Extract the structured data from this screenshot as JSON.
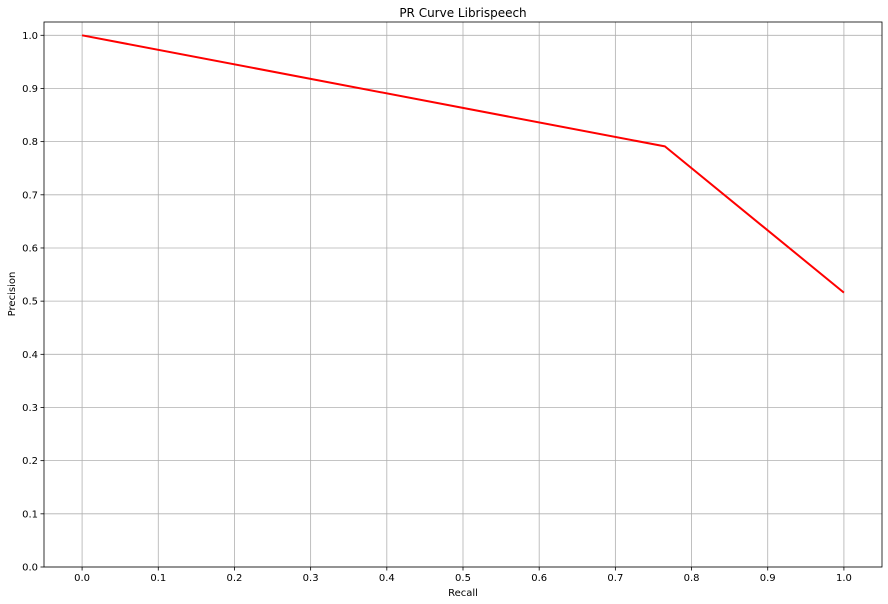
{
  "chart_data": {
    "type": "line",
    "title": "PR Curve Librispeech",
    "xlabel": "Recall",
    "ylabel": "Precision",
    "xlim": [
      -0.05,
      1.05
    ],
    "ylim": [
      0.0,
      1.025
    ],
    "xticks": [
      "0.0",
      "0.1",
      "0.2",
      "0.3",
      "0.4",
      "0.5",
      "0.6",
      "0.7",
      "0.8",
      "0.9",
      "1.0"
    ],
    "yticks": [
      "0.0",
      "0.1",
      "0.2",
      "0.3",
      "0.4",
      "0.5",
      "0.6",
      "0.7",
      "0.8",
      "0.9",
      "1.0"
    ],
    "grid": true,
    "series": [
      {
        "color": "#ff0000",
        "x": [
          0.0,
          0.765,
          1.0
        ],
        "y": [
          1.0,
          0.791,
          0.516
        ]
      }
    ]
  }
}
